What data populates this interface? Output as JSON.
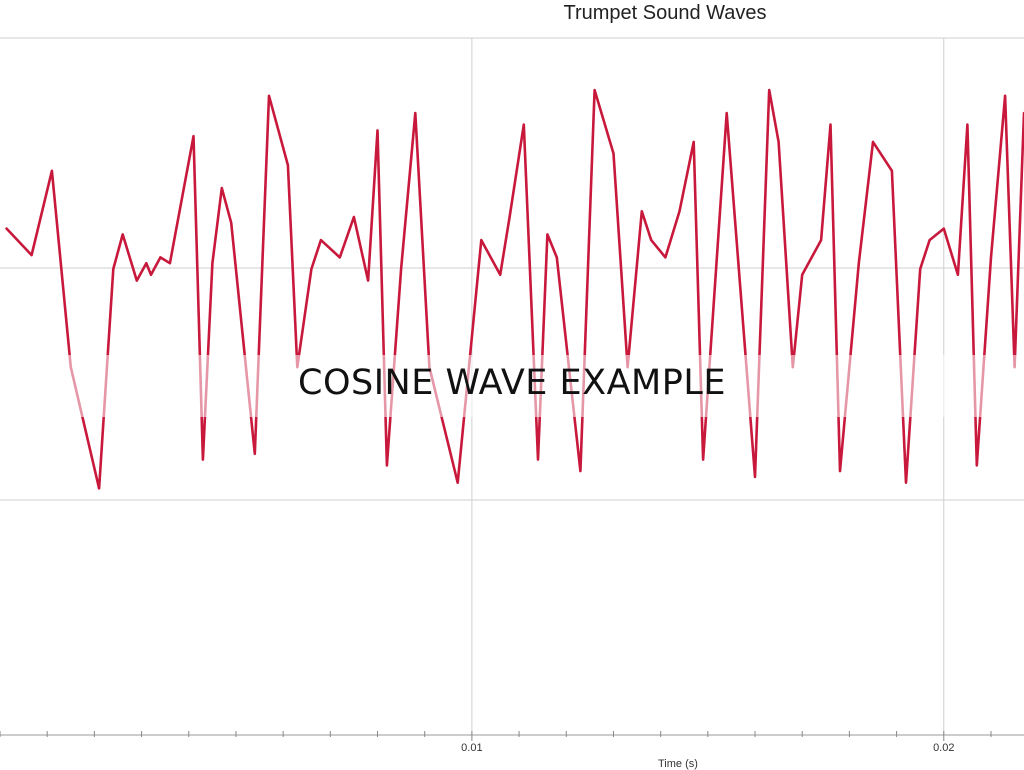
{
  "slide": {
    "caption": "COSINE WAVE EXAMPLE"
  },
  "chart_data": {
    "type": "line",
    "title": "Trumpet Sound Waves",
    "xlabel": "Time (s)",
    "ylabel": "",
    "x_ticks": [
      0.01,
      0.02
    ],
    "x_tick_labels": [
      "0.01",
      "0.02"
    ],
    "grid": true,
    "line_color": "#c8193c",
    "series": [
      {
        "x": [
          0.00014,
          0.00067,
          0.0011,
          0.0015,
          0.0021,
          0.0024,
          0.0026,
          0.0029,
          0.0031,
          0.0032,
          0.0034,
          0.0036,
          0.0041,
          0.0043,
          0.0045,
          0.0047,
          0.0049,
          0.0054,
          0.0057,
          0.0061,
          0.0063,
          0.0066,
          0.0068,
          0.0072,
          0.0075,
          0.0078,
          0.008,
          0.0082,
          0.0085,
          0.0088,
          0.0091,
          0.0097,
          0.0102,
          0.0106,
          0.0108,
          0.0111,
          0.0114,
          0.0116,
          0.0118,
          0.0123,
          0.0126,
          0.013,
          0.0133,
          0.0136,
          0.0138,
          0.0141,
          0.0144,
          0.0147,
          0.0149,
          0.0154,
          0.016,
          0.0163,
          0.0165,
          0.0168,
          0.017,
          0.0174,
          0.0176,
          0.0178,
          0.0182,
          0.0185,
          0.0189,
          0.0192,
          0.0195,
          0.0197,
          0.02,
          0.0203,
          0.0205,
          0.0207,
          0.021,
          0.0213,
          0.0215,
          0.0217
        ],
        "y": [
          0.35,
          0.12,
          0.85,
          -0.85,
          -1.9,
          0.0,
          0.3,
          -0.1,
          0.05,
          -0.05,
          0.1,
          0.05,
          1.15,
          -1.65,
          0.05,
          0.7,
          0.4,
          -1.6,
          1.5,
          0.9,
          -0.85,
          0.0,
          0.25,
          0.1,
          0.45,
          -0.1,
          1.2,
          -1.7,
          0.0,
          1.35,
          -0.85,
          -1.85,
          0.25,
          -0.05,
          0.45,
          1.25,
          -1.65,
          0.3,
          0.1,
          -1.75,
          1.55,
          1.0,
          -0.85,
          0.5,
          0.25,
          0.1,
          0.5,
          1.1,
          -1.65,
          1.35,
          -1.8,
          1.55,
          1.1,
          -0.85,
          -0.05,
          0.25,
          1.25,
          -1.75,
          0.05,
          1.1,
          0.85,
          -1.85,
          0.0,
          0.25,
          0.35,
          -0.05,
          1.25,
          -1.7,
          0.1,
          1.5,
          -0.85,
          1.35
        ]
      }
    ]
  }
}
